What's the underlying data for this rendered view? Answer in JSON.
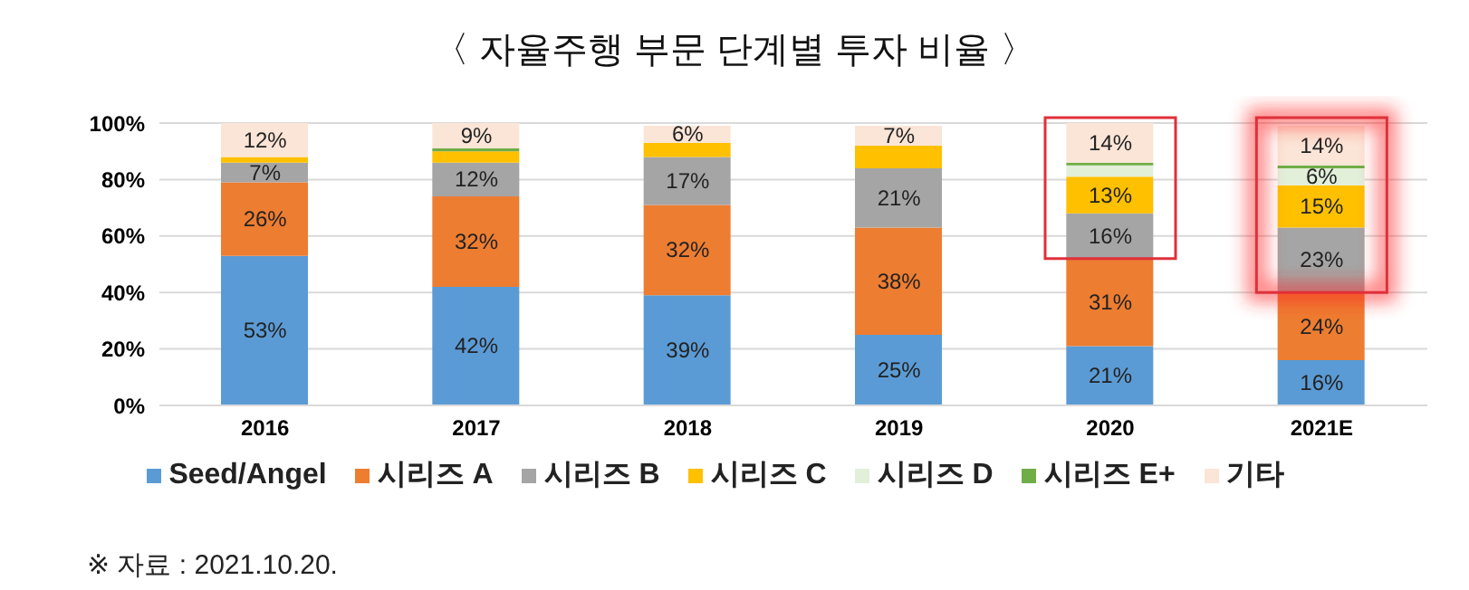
{
  "chart_data": {
    "type": "bar",
    "title": "〈 자율주행 부문 단계별 투자 비율 〉",
    "stacked": true,
    "categories": [
      "2016",
      "2017",
      "2018",
      "2019",
      "2020",
      "2021E"
    ],
    "series": [
      {
        "name": "Seed/Angel",
        "color": "#5b9bd5",
        "values": [
          53,
          42,
          39,
          25,
          21,
          16
        ],
        "value_labels": [
          "53%",
          "42%",
          "39%",
          "25%",
          "21%",
          "16%"
        ]
      },
      {
        "name": "시리즈 A",
        "color": "#ed7d31",
        "values": [
          26,
          32,
          32,
          38,
          31,
          24
        ],
        "value_labels": [
          "26%",
          "32%",
          "32%",
          "38%",
          "31%",
          "24%"
        ]
      },
      {
        "name": "시리즈 B",
        "color": "#a5a5a5",
        "values": [
          7,
          12,
          17,
          21,
          16,
          23
        ],
        "value_labels": [
          "7%",
          "12%",
          "17%",
          "21%",
          "16%",
          "23%"
        ]
      },
      {
        "name": "시리즈 C",
        "color": "#ffc000",
        "values": [
          2,
          4,
          5,
          8,
          13,
          15
        ],
        "value_labels": [
          null,
          null,
          null,
          null,
          "13%",
          "15%"
        ]
      },
      {
        "name": "시리즈 D",
        "color": "#e2efd9",
        "values": [
          0,
          0,
          0,
          0,
          4,
          6
        ],
        "value_labels": [
          null,
          null,
          null,
          null,
          null,
          "6%"
        ]
      },
      {
        "name": "시리즈 E+",
        "color": "#70ad47",
        "values": [
          0,
          1,
          0,
          0,
          1,
          1
        ],
        "value_labels": [
          null,
          null,
          null,
          null,
          null,
          null
        ]
      },
      {
        "name": "기타",
        "color": "#fbe5d6",
        "values": [
          12,
          9,
          6,
          7,
          14,
          14
        ],
        "value_labels": [
          "12%",
          "9%",
          "6%",
          "7%",
          "14%",
          "14%"
        ]
      }
    ],
    "ylim": [
      0,
      100
    ],
    "yticks": [
      {
        "value": 0,
        "label": "0%"
      },
      {
        "value": 20,
        "label": "20%"
      },
      {
        "value": 40,
        "label": "40%"
      },
      {
        "value": 60,
        "label": "60%"
      },
      {
        "value": 80,
        "label": "80%"
      },
      {
        "value": 100,
        "label": "100%"
      }
    ],
    "grid": "y",
    "legend": "bottom",
    "annotations": [
      "※ 자료 : 2021.10.20."
    ]
  }
}
